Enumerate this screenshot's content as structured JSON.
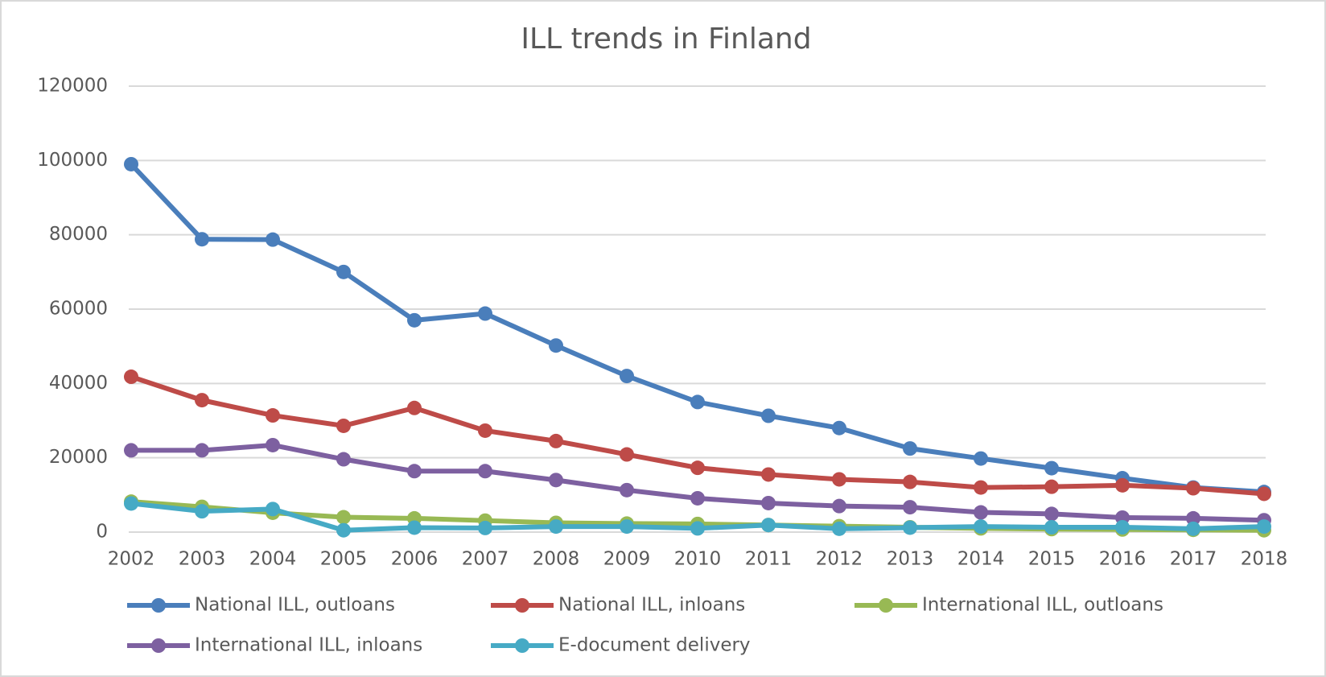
{
  "chart_data": {
    "type": "line",
    "title": "ILL trends in Finland",
    "categories": [
      "2002",
      "2003",
      "2004",
      "2005",
      "2006",
      "2007",
      "2008",
      "2009",
      "2010",
      "2011",
      "2012",
      "2013",
      "2014",
      "2015",
      "2016",
      "2017",
      "2018"
    ],
    "series": [
      {
        "name": "National ILL, outloans",
        "color": "#4a7ebb",
        "values": [
          99000,
          78800,
          78700,
          70000,
          57000,
          58800,
          50200,
          42000,
          35000,
          31300,
          28000,
          22500,
          19800,
          17200,
          14500,
          12000,
          10800
        ]
      },
      {
        "name": "National ILL, inloans",
        "color": "#be4b48",
        "values": [
          41800,
          35500,
          31400,
          28600,
          33400,
          27300,
          24500,
          20900,
          17300,
          15500,
          14200,
          13500,
          12000,
          12200,
          12600,
          11800,
          10300
        ]
      },
      {
        "name": "International ILL, outloans",
        "color": "#98b954",
        "values": [
          8200,
          6800,
          5200,
          4000,
          3700,
          3100,
          2500,
          2300,
          2200,
          1900,
          1600,
          1300,
          1000,
          800,
          700,
          600,
          500
        ]
      },
      {
        "name": "International ILL, inloans",
        "color": "#7d60a0",
        "values": [
          22000,
          22000,
          23400,
          19600,
          16400,
          16400,
          14000,
          11300,
          9100,
          7800,
          7000,
          6700,
          5300,
          4900,
          3900,
          3700,
          3200
        ]
      },
      {
        "name": "E-document delivery",
        "color": "#46aac5",
        "values": [
          7700,
          5600,
          6200,
          500,
          1200,
          1100,
          1500,
          1500,
          1000,
          1900,
          900,
          1200,
          1500,
          1300,
          1300,
          900,
          1500
        ]
      }
    ],
    "ylim": [
      0,
      120000
    ],
    "yticks": [
      0,
      20000,
      40000,
      60000,
      80000,
      100000,
      120000
    ],
    "grid": true,
    "legend": "bottom"
  }
}
